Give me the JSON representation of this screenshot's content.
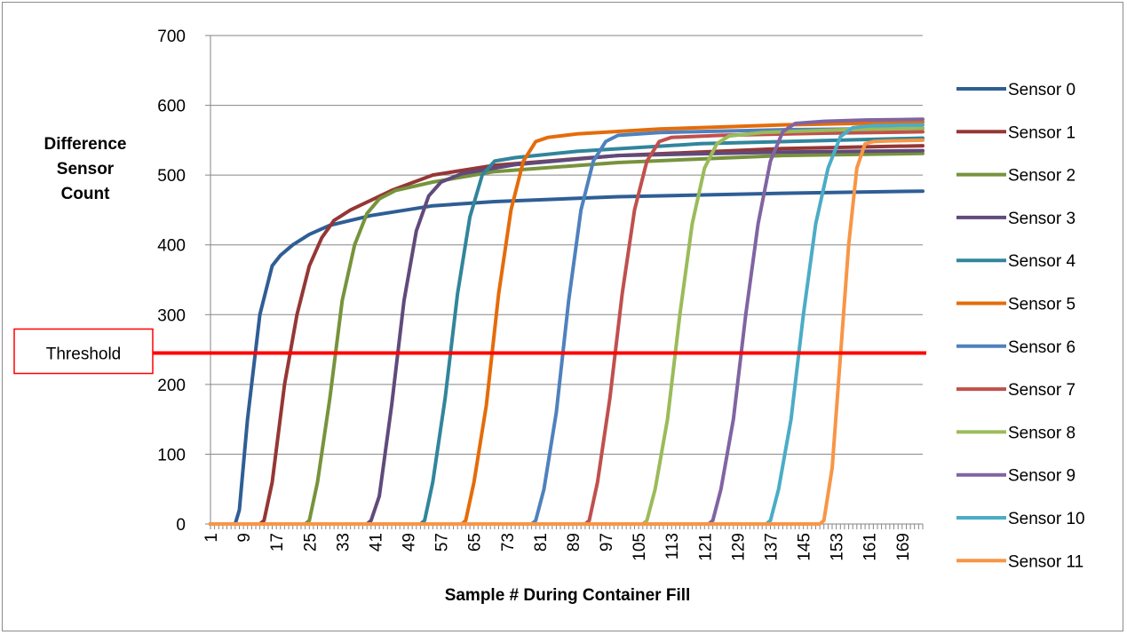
{
  "chart_data": {
    "type": "line",
    "xlabel": "Sample # During Container Fill",
    "ylabel": "Difference Sensor Count",
    "ylabel_lines": [
      "Difference",
      "Sensor",
      "Count"
    ],
    "ylim": [
      0,
      700
    ],
    "yticks": [
      0,
      100,
      200,
      300,
      400,
      500,
      600,
      700
    ],
    "xlim": [
      1,
      174
    ],
    "xticks": [
      1,
      9,
      17,
      25,
      33,
      41,
      49,
      57,
      65,
      73,
      81,
      89,
      97,
      105,
      113,
      121,
      129,
      137,
      145,
      153,
      161,
      169
    ],
    "grid": "horizontal",
    "legend_position": "right",
    "threshold": {
      "label": "Threshold",
      "value": 245,
      "color": "#ff0000"
    },
    "series": [
      {
        "name": "Sensor 0",
        "color": "#2f5e95",
        "x": [
          1,
          7,
          8,
          10,
          13,
          16,
          18,
          21,
          25,
          30,
          40,
          55,
          70,
          100,
          140,
          174
        ],
        "y": [
          0,
          0,
          20,
          150,
          300,
          370,
          385,
          400,
          415,
          428,
          442,
          456,
          462,
          469,
          474,
          477
        ]
      },
      {
        "name": "Sensor 1",
        "color": "#953735",
        "x": [
          1,
          13,
          14,
          16,
          19,
          22,
          25,
          28,
          31,
          35,
          45,
          55,
          70,
          100,
          140,
          174
        ],
        "y": [
          0,
          0,
          5,
          60,
          200,
          300,
          370,
          410,
          435,
          450,
          478,
          500,
          514,
          528,
          538,
          542
        ]
      },
      {
        "name": "Sensor 2",
        "color": "#77933c",
        "x": [
          1,
          24,
          25,
          27,
          30,
          33,
          36,
          39,
          42,
          46,
          55,
          70,
          100,
          140,
          174
        ],
        "y": [
          0,
          0,
          5,
          60,
          180,
          320,
          400,
          445,
          466,
          478,
          490,
          505,
          518,
          528,
          531
        ]
      },
      {
        "name": "Sensor 3",
        "color": "#604a7b",
        "x": [
          1,
          39,
          40,
          42,
          45,
          48,
          51,
          54,
          57,
          62,
          75,
          100,
          140,
          174
        ],
        "y": [
          0,
          0,
          5,
          40,
          170,
          320,
          420,
          470,
          490,
          502,
          515,
          528,
          533,
          535
        ]
      },
      {
        "name": "Sensor 4",
        "color": "#31859c",
        "x": [
          1,
          52,
          53,
          55,
          58,
          61,
          64,
          67,
          70,
          75,
          90,
          120,
          174
        ],
        "y": [
          0,
          0,
          5,
          60,
          180,
          330,
          440,
          500,
          520,
          525,
          534,
          545,
          553
        ]
      },
      {
        "name": "Sensor 5",
        "color": "#e46c0a",
        "x": [
          1,
          62,
          63,
          65,
          68,
          71,
          74,
          77,
          80,
          83,
          90,
          110,
          140,
          174
        ],
        "y": [
          0,
          0,
          5,
          60,
          170,
          330,
          450,
          520,
          548,
          554,
          559,
          566,
          572,
          576
        ]
      },
      {
        "name": "Sensor 6",
        "color": "#4f81bd",
        "x": [
          1,
          79,
          80,
          82,
          85,
          88,
          91,
          94,
          97,
          100,
          110,
          140,
          174
        ],
        "y": [
          0,
          0,
          5,
          50,
          160,
          320,
          450,
          520,
          548,
          557,
          561,
          565,
          567
        ]
      },
      {
        "name": "Sensor 7",
        "color": "#c0504d",
        "x": [
          1,
          92,
          93,
          95,
          98,
          101,
          104,
          107,
          110,
          113,
          125,
          150,
          174
        ],
        "y": [
          0,
          0,
          5,
          60,
          180,
          330,
          450,
          520,
          548,
          554,
          557,
          560,
          562
        ]
      },
      {
        "name": "Sensor 8",
        "color": "#9bbb59",
        "x": [
          1,
          106,
          107,
          109,
          112,
          115,
          118,
          121,
          124,
          127,
          135,
          155,
          174
        ],
        "y": [
          0,
          0,
          5,
          50,
          150,
          300,
          430,
          510,
          545,
          556,
          561,
          565,
          567
        ]
      },
      {
        "name": "Sensor 9",
        "color": "#8064a2",
        "x": [
          1,
          122,
          123,
          125,
          128,
          131,
          134,
          137,
          140,
          143,
          150,
          160,
          174
        ],
        "y": [
          0,
          0,
          5,
          50,
          150,
          300,
          430,
          520,
          562,
          574,
          577,
          579,
          580
        ]
      },
      {
        "name": "Sensor 10",
        "color": "#4bacc6",
        "x": [
          1,
          136,
          137,
          139,
          142,
          145,
          148,
          151,
          154,
          157,
          162,
          174
        ],
        "y": [
          0,
          0,
          5,
          50,
          150,
          300,
          430,
          510,
          555,
          568,
          571,
          572
        ]
      },
      {
        "name": "Sensor 11",
        "color": "#f79646",
        "x": [
          1,
          149,
          150,
          152,
          154,
          156,
          158,
          160,
          162,
          166,
          174
        ],
        "y": [
          0,
          0,
          5,
          80,
          240,
          400,
          510,
          545,
          548,
          549,
          550
        ]
      }
    ]
  }
}
